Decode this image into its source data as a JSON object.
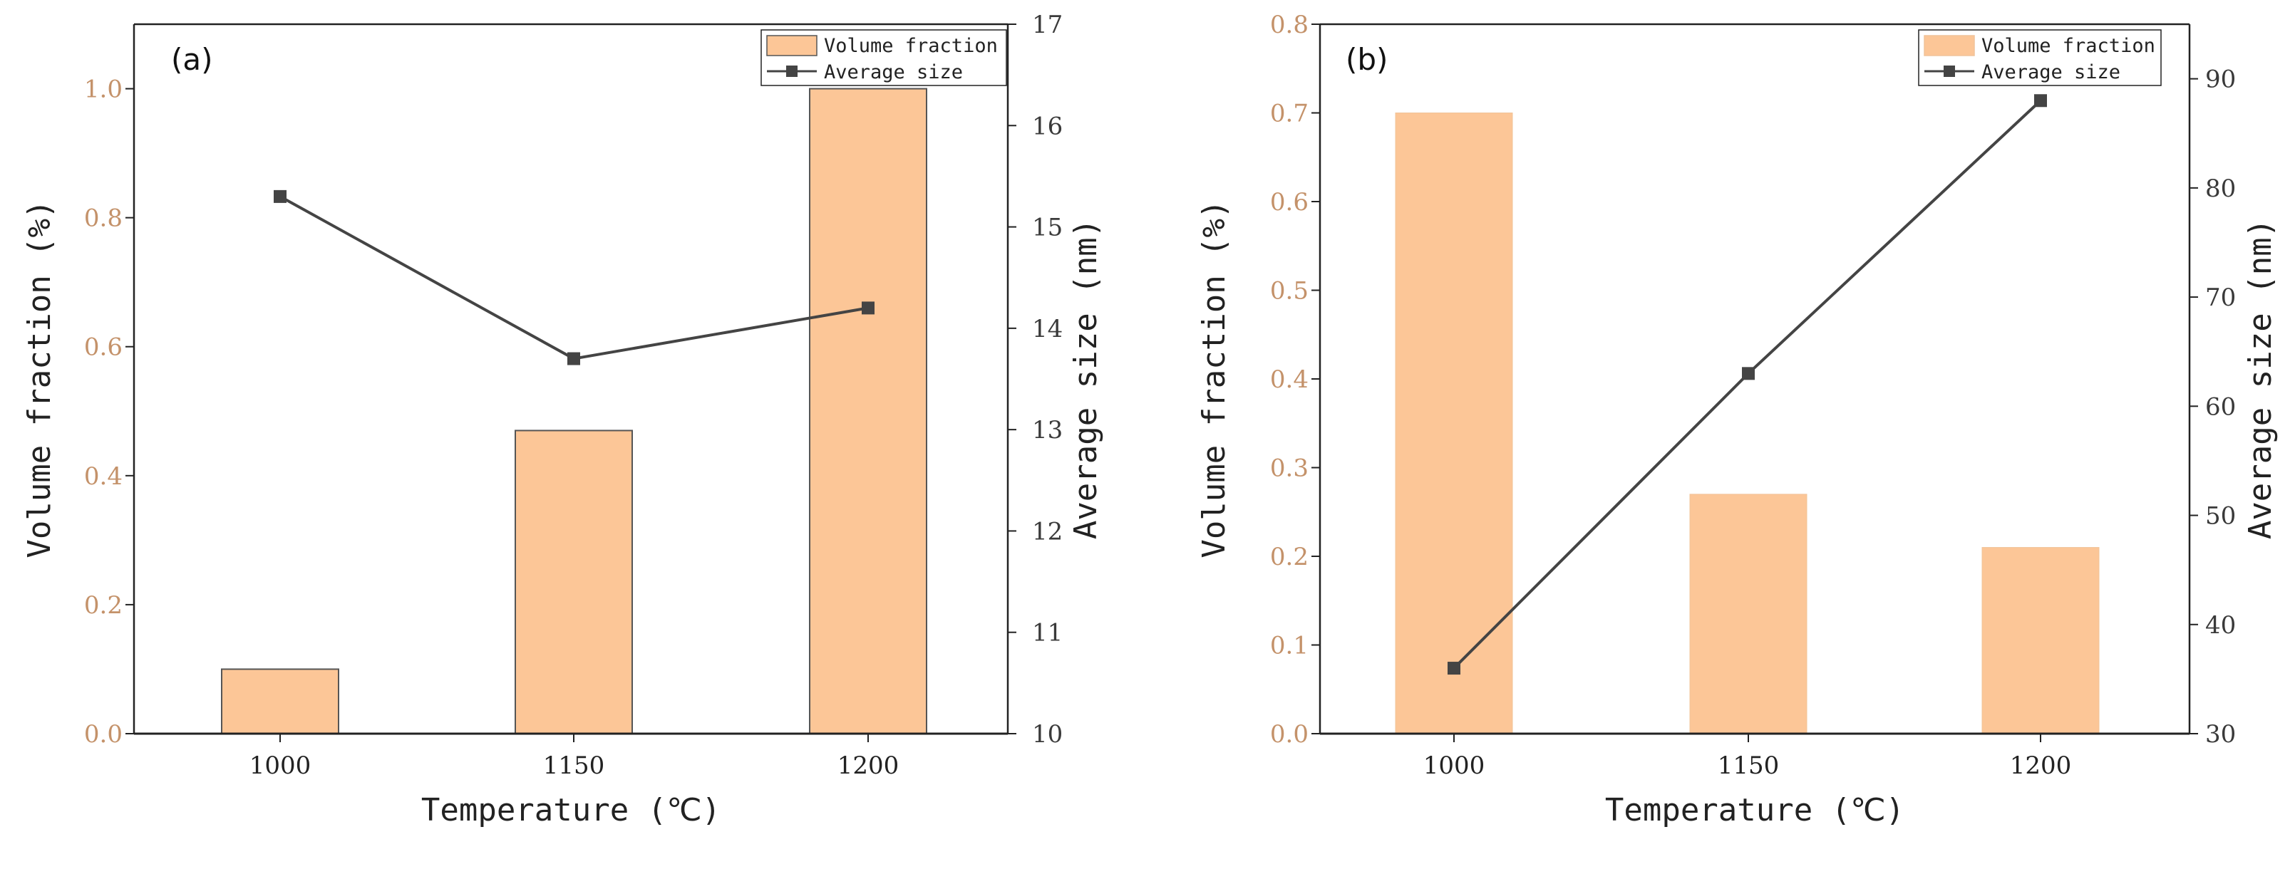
{
  "chart_data": [
    {
      "panel": "(a)",
      "type": "bar+line",
      "categories": [
        "1000",
        "1150",
        "1200"
      ],
      "xlabel": "Temperature (℃)",
      "series": [
        {
          "name": "Volume fraction",
          "kind": "bar",
          "axis": "left",
          "values": [
            0.1,
            0.47,
            1.0
          ]
        },
        {
          "name": "Average size",
          "kind": "line",
          "axis": "right",
          "values": [
            15.3,
            13.7,
            14.2
          ]
        }
      ],
      "ylabel": "Volume fraction (%)",
      "ylim": [
        0,
        1.1
      ],
      "yticks": [
        "0.0",
        "0.2",
        "0.4",
        "0.6",
        "0.8",
        "1.0"
      ],
      "y2label": "Average size (nm)",
      "y2lim": [
        10,
        17
      ],
      "y2ticks": [
        "10",
        "11",
        "12",
        "13",
        "14",
        "15",
        "16",
        "17"
      ],
      "legend": "top-right"
    },
    {
      "panel": "(b)",
      "type": "bar+line",
      "categories": [
        "1000",
        "1150",
        "1200"
      ],
      "xlabel": "Temperature (℃)",
      "series": [
        {
          "name": "Volume fraction",
          "kind": "bar",
          "axis": "left",
          "values": [
            0.7,
            0.27,
            0.21
          ]
        },
        {
          "name": "Average size",
          "kind": "line",
          "axis": "right",
          "values": [
            36,
            63,
            88
          ]
        }
      ],
      "ylabel": "Volume fraction (%)",
      "ylim": [
        0,
        0.8
      ],
      "yticks": [
        "0.0",
        "0.1",
        "0.2",
        "0.3",
        "0.4",
        "0.5",
        "0.6",
        "0.7",
        "0.8"
      ],
      "y2label": "Average size (nm)",
      "y2lim": [
        30,
        95
      ],
      "y2ticks": [
        "30",
        "40",
        "50",
        "60",
        "70",
        "80",
        "90"
      ],
      "legend": "top-right"
    }
  ],
  "colors": {
    "bar_fill": "#fcc697",
    "bar_stroke_a": "#555555",
    "line": "#444444",
    "left_tick": "#c4926a",
    "axis": "#222222"
  }
}
